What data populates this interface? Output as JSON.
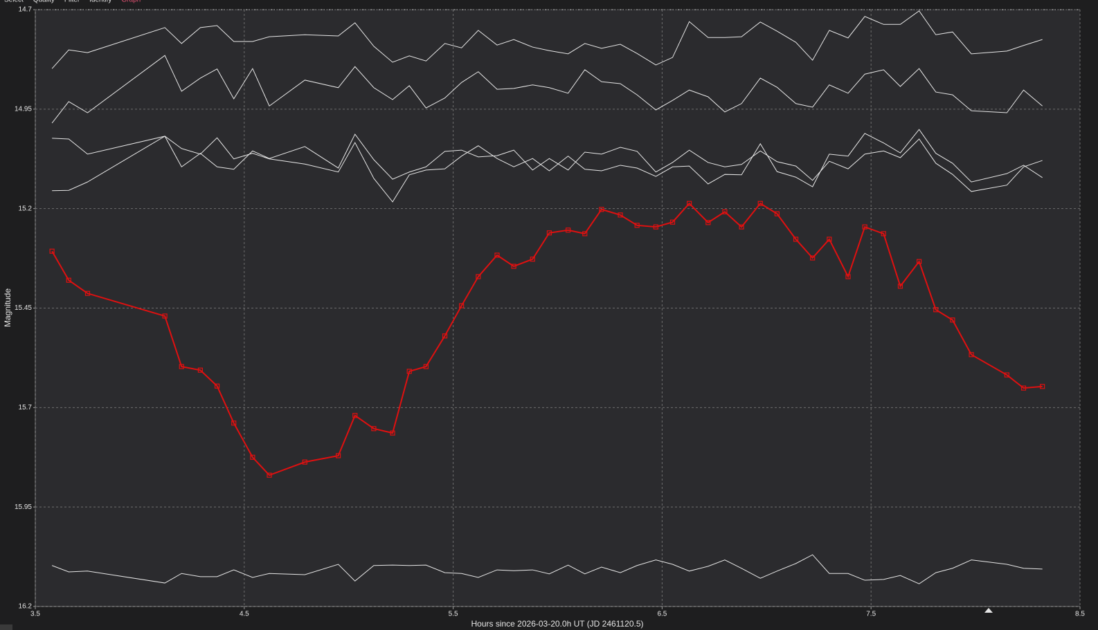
{
  "tabs": [
    "Select",
    "Quality",
    "Filter",
    "Identify",
    "Graph"
  ],
  "chart_data": {
    "type": "line",
    "y_label": "Magnitude",
    "x_label": "Hours since 2026-03-20.0h UT (JD 2461120.5)",
    "xlim": [
      3.5,
      8.5
    ],
    "xticks": [
      3.5,
      4.5,
      5.5,
      6.5,
      7.5,
      8.5
    ],
    "ylim": [
      16.2,
      14.7
    ],
    "yticks": [
      14.7,
      14.95,
      15.2,
      15.45,
      15.7,
      15.95,
      16.2
    ],
    "y_inverted": true,
    "grid": true,
    "x": [
      3.58,
      3.66,
      3.75,
      4.12,
      4.2,
      4.29,
      4.37,
      4.45,
      4.54,
      4.62,
      4.79,
      4.95,
      5.03,
      5.12,
      5.21,
      5.29,
      5.37,
      5.46,
      5.54,
      5.62,
      5.71,
      5.79,
      5.88,
      5.96,
      6.05,
      6.13,
      6.21,
      6.3,
      6.38,
      6.47,
      6.55,
      6.63,
      6.72,
      6.8,
      6.88,
      6.97,
      7.05,
      7.14,
      7.22,
      7.3,
      7.39,
      7.47,
      7.56,
      7.64,
      7.73,
      7.81,
      7.89,
      7.98,
      8.15,
      8.23,
      8.32
    ],
    "series": [
      {
        "color": "#e8e8e8",
        "values": [
          14.848,
          14.801,
          14.808,
          14.745,
          14.785,
          14.745,
          14.74,
          14.78,
          14.78,
          14.768,
          14.763,
          14.766,
          14.733,
          14.792,
          14.832,
          14.816,
          14.829,
          14.785,
          14.796,
          14.752,
          14.789,
          14.775,
          14.794,
          14.803,
          14.811,
          14.785,
          14.797,
          14.787,
          14.81,
          14.839,
          14.82,
          14.73,
          14.77,
          14.77,
          14.768,
          14.731,
          14.754,
          14.782,
          14.827,
          14.752,
          14.771,
          14.717,
          14.737,
          14.737,
          14.703,
          14.763,
          14.756,
          14.811,
          14.804,
          14.79,
          14.775
        ]
      },
      {
        "color": "#e8e8e8",
        "values": [
          14.985,
          14.931,
          14.959,
          14.815,
          14.905,
          14.872,
          14.849,
          14.924,
          14.848,
          14.942,
          14.877,
          14.896,
          14.843,
          14.896,
          14.926,
          14.891,
          14.947,
          14.922,
          14.883,
          14.856,
          14.9,
          14.898,
          14.889,
          14.896,
          14.91,
          14.851,
          14.881,
          14.886,
          14.914,
          14.952,
          14.928,
          14.902,
          14.919,
          14.957,
          14.936,
          14.872,
          14.895,
          14.936,
          14.945,
          14.889,
          14.91,
          14.862,
          14.851,
          14.893,
          14.848,
          14.907,
          14.914,
          14.954,
          14.959,
          14.902,
          14.942
        ]
      },
      {
        "color": "#e8e8e8",
        "values": [
          15.023,
          15.025,
          15.063,
          15.018,
          15.049,
          15.063,
          15.022,
          15.075,
          15.061,
          15.075,
          15.088,
          15.108,
          15.034,
          15.124,
          15.183,
          15.115,
          15.103,
          15.1,
          15.068,
          15.042,
          15.074,
          15.095,
          15.074,
          15.105,
          15.068,
          15.101,
          15.105,
          15.091,
          15.098,
          15.119,
          15.095,
          15.093,
          15.138,
          15.114,
          15.115,
          15.037,
          15.107,
          15.121,
          15.145,
          15.063,
          15.068,
          15.011,
          15.035,
          15.06,
          15.001,
          15.061,
          15.086,
          15.133,
          15.112,
          15.091,
          15.122
        ]
      },
      {
        "color": "#e8e8e8",
        "values": [
          15.155,
          15.154,
          15.133,
          15.018,
          15.095,
          15.061,
          15.095,
          15.101,
          15.055,
          15.074,
          15.044,
          15.098,
          15.013,
          15.077,
          15.126,
          15.108,
          15.095,
          15.056,
          15.053,
          15.07,
          15.067,
          15.053,
          15.103,
          15.074,
          15.103,
          15.058,
          15.063,
          15.046,
          15.056,
          15.108,
          15.084,
          15.053,
          15.084,
          15.095,
          15.089,
          15.055,
          15.082,
          15.093,
          15.129,
          15.081,
          15.1,
          15.063,
          15.055,
          15.072,
          15.025,
          15.086,
          15.114,
          15.157,
          15.141,
          15.095,
          15.079
        ]
      },
      {
        "color": "#e8e8e8",
        "values": [
          16.097,
          16.113,
          16.111,
          16.141,
          16.117,
          16.125,
          16.125,
          16.108,
          16.127,
          16.117,
          16.12,
          16.094,
          16.136,
          16.097,
          16.096,
          16.097,
          16.096,
          16.115,
          16.117,
          16.127,
          16.108,
          16.11,
          16.108,
          16.118,
          16.096,
          16.118,
          16.101,
          16.115,
          16.097,
          16.083,
          16.094,
          16.111,
          16.099,
          16.083,
          16.104,
          16.129,
          16.111,
          16.092,
          16.07,
          16.117,
          16.117,
          16.134,
          16.132,
          16.122,
          16.143,
          16.115,
          16.104,
          16.083,
          16.094,
          16.104,
          16.106
        ]
      },
      {
        "color": "#e01010",
        "markers": true,
        "values": [
          15.307,
          15.38,
          15.413,
          15.47,
          15.597,
          15.606,
          15.646,
          15.739,
          15.825,
          15.87,
          15.837,
          15.821,
          15.72,
          15.753,
          15.764,
          15.609,
          15.597,
          15.52,
          15.444,
          15.371,
          15.317,
          15.345,
          15.327,
          15.261,
          15.254,
          15.263,
          15.202,
          15.216,
          15.242,
          15.246,
          15.234,
          15.187,
          15.235,
          15.208,
          15.246,
          15.187,
          15.213,
          15.277,
          15.324,
          15.277,
          15.371,
          15.246,
          15.263,
          15.395,
          15.333,
          15.454,
          15.48,
          15.567,
          15.618,
          15.651,
          15.647
        ]
      }
    ]
  }
}
